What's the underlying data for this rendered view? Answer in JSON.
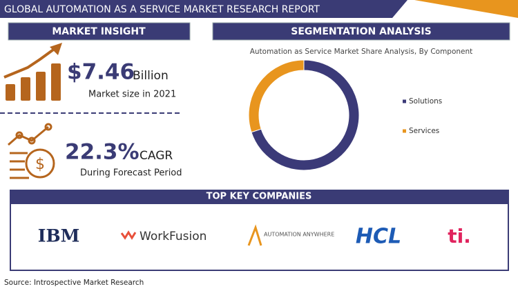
{
  "header": {
    "title": "GLOBAL AUTOMATION AS A SERVICE MARKET RESEARCH REPORT"
  },
  "insight": {
    "heading": "MARKET INSIGHT",
    "market_size": "$7.46",
    "unit": "Billion",
    "market_note": "Market size in 2021",
    "cagr": "22.3%",
    "cagr_label": "CAGR",
    "cagr_note": "During Forecast Period"
  },
  "segmentation": {
    "heading": "SEGMENTATION ANALYSIS"
  },
  "chart_data": {
    "type": "donut",
    "subtitle": "Automation as Service Market Share Analysis, By Component",
    "categories": [
      "Solutions",
      "Services"
    ],
    "values": [
      70,
      30
    ],
    "colors": [
      "#3b3a78",
      "#e8951e"
    ]
  },
  "companies": {
    "heading": "TOP KEY COMPANIES",
    "logos": [
      "IBM",
      "WorkFusion",
      "AUTOMATION ANYWHERE",
      "HCL",
      "ti."
    ]
  },
  "source": "Source: Introspective Market Research"
}
